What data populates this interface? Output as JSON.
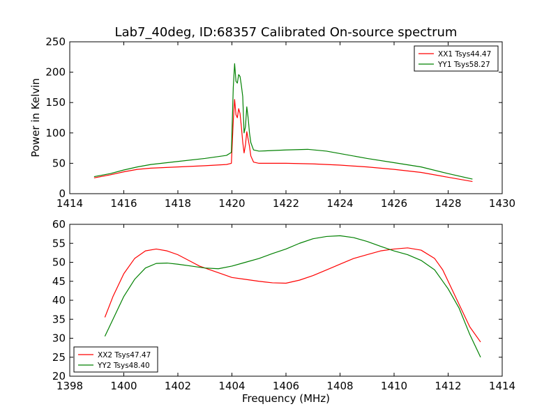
{
  "figure": {
    "title": "Lab7_40deg, ID:68357 Calibrated On-source spectrum",
    "xlabel": "Frequency (MHz)"
  },
  "colors": {
    "xx": "#ff0000",
    "yy": "#008000",
    "axis": "#000000",
    "background": "#ffffff"
  },
  "chart_data": [
    {
      "type": "line",
      "ylabel": "Power in Kelvin",
      "xlim": [
        1414,
        1430
      ],
      "ylim": [
        0,
        250
      ],
      "xticks": [
        1414,
        1416,
        1418,
        1420,
        1422,
        1424,
        1426,
        1428,
        1430
      ],
      "yticks": [
        0,
        50,
        100,
        150,
        200,
        250
      ],
      "legend_position": "top-right",
      "grid": false,
      "series": [
        {
          "name": "XX1 Tsys44.47",
          "color": "#ff0000",
          "points": [
            [
              1414.9,
              26
            ],
            [
              1415.5,
              31
            ],
            [
              1416,
              36
            ],
            [
              1416.5,
              40
            ],
            [
              1417,
              42
            ],
            [
              1418,
              44
            ],
            [
              1419,
              46
            ],
            [
              1419.8,
              48
            ],
            [
              1419.98,
              50
            ],
            [
              1420.05,
              120
            ],
            [
              1420.1,
              155
            ],
            [
              1420.15,
              130
            ],
            [
              1420.2,
              125
            ],
            [
              1420.25,
              140
            ],
            [
              1420.3,
              132
            ],
            [
              1420.35,
              110
            ],
            [
              1420.4,
              85
            ],
            [
              1420.45,
              67
            ],
            [
              1420.5,
              80
            ],
            [
              1420.55,
              102
            ],
            [
              1420.6,
              90
            ],
            [
              1420.65,
              78
            ],
            [
              1420.7,
              62
            ],
            [
              1420.8,
              52
            ],
            [
              1421,
              50
            ],
            [
              1422,
              50
            ],
            [
              1423,
              49
            ],
            [
              1424,
              47
            ],
            [
              1425,
              44
            ],
            [
              1426,
              40
            ],
            [
              1427,
              35
            ],
            [
              1428,
              27
            ],
            [
              1428.9,
              20
            ]
          ]
        },
        {
          "name": "YY1 Tsys58.27",
          "color": "#008000",
          "points": [
            [
              1414.9,
              28
            ],
            [
              1415.5,
              33
            ],
            [
              1416,
              39
            ],
            [
              1416.5,
              44
            ],
            [
              1417,
              48
            ],
            [
              1418,
              53
            ],
            [
              1419,
              58
            ],
            [
              1419.8,
              63
            ],
            [
              1419.98,
              68
            ],
            [
              1420.05,
              175
            ],
            [
              1420.1,
              214
            ],
            [
              1420.15,
              185
            ],
            [
              1420.2,
              182
            ],
            [
              1420.25,
              196
            ],
            [
              1420.3,
              193
            ],
            [
              1420.35,
              178
            ],
            [
              1420.4,
              160
            ],
            [
              1420.45,
              100
            ],
            [
              1420.5,
              110
            ],
            [
              1420.55,
              143
            ],
            [
              1420.6,
              125
            ],
            [
              1420.65,
              100
            ],
            [
              1420.7,
              84
            ],
            [
              1420.8,
              72
            ],
            [
              1421,
              70
            ],
            [
              1422,
              72
            ],
            [
              1422.8,
              73
            ],
            [
              1423.5,
              70
            ],
            [
              1424,
              66
            ],
            [
              1425,
              58
            ],
            [
              1426,
              51
            ],
            [
              1427,
              44
            ],
            [
              1428,
              33
            ],
            [
              1428.9,
              24
            ]
          ]
        }
      ]
    },
    {
      "type": "line",
      "ylabel": "",
      "xlim": [
        1398,
        1414
      ],
      "ylim": [
        20,
        60
      ],
      "xticks": [
        1398,
        1400,
        1402,
        1404,
        1406,
        1408,
        1410,
        1412,
        1414
      ],
      "yticks": [
        20,
        25,
        30,
        35,
        40,
        45,
        50,
        55,
        60
      ],
      "legend_position": "bottom-left",
      "grid": false,
      "series": [
        {
          "name": "XX2 Tsys47.47",
          "color": "#ff0000",
          "points": [
            [
              1399.3,
              35.5
            ],
            [
              1399.6,
              41
            ],
            [
              1400,
              47
            ],
            [
              1400.4,
              51
            ],
            [
              1400.8,
              53
            ],
            [
              1401.2,
              53.5
            ],
            [
              1401.6,
              53
            ],
            [
              1402,
              52
            ],
            [
              1402.4,
              50.5
            ],
            [
              1402.8,
              49
            ],
            [
              1403.2,
              48
            ],
            [
              1403.6,
              47
            ],
            [
              1404,
              46
            ],
            [
              1404.5,
              45.5
            ],
            [
              1405,
              45
            ],
            [
              1405.5,
              44.6
            ],
            [
              1406,
              44.5
            ],
            [
              1406.5,
              45.3
            ],
            [
              1407,
              46.5
            ],
            [
              1407.5,
              48
            ],
            [
              1408,
              49.5
            ],
            [
              1408.5,
              51
            ],
            [
              1409,
              52
            ],
            [
              1409.5,
              53
            ],
            [
              1410,
              53.5
            ],
            [
              1410.5,
              53.8
            ],
            [
              1411,
              53.2
            ],
            [
              1411.5,
              51
            ],
            [
              1411.8,
              48
            ],
            [
              1412,
              45
            ],
            [
              1412.4,
              39
            ],
            [
              1412.8,
              33
            ],
            [
              1413.2,
              29
            ]
          ]
        },
        {
          "name": "YY2 Tsys48.40",
          "color": "#008000",
          "points": [
            [
              1399.3,
              30.5
            ],
            [
              1399.6,
              35
            ],
            [
              1400,
              41
            ],
            [
              1400.4,
              45.5
            ],
            [
              1400.8,
              48.5
            ],
            [
              1401.2,
              49.7
            ],
            [
              1401.6,
              49.8
            ],
            [
              1402,
              49.5
            ],
            [
              1402.5,
              49
            ],
            [
              1403,
              48.5
            ],
            [
              1403.5,
              48.3
            ],
            [
              1404,
              49
            ],
            [
              1404.5,
              50
            ],
            [
              1405,
              51
            ],
            [
              1405.5,
              52.3
            ],
            [
              1406,
              53.5
            ],
            [
              1406.5,
              55
            ],
            [
              1407,
              56.2
            ],
            [
              1407.5,
              56.8
            ],
            [
              1408,
              57
            ],
            [
              1408.5,
              56.5
            ],
            [
              1409,
              55.5
            ],
            [
              1409.5,
              54.2
            ],
            [
              1410,
              53
            ],
            [
              1410.5,
              52
            ],
            [
              1411,
              50.5
            ],
            [
              1411.5,
              48
            ],
            [
              1412,
              43
            ],
            [
              1412.4,
              38
            ],
            [
              1412.8,
              31
            ],
            [
              1413.2,
              25
            ]
          ]
        }
      ]
    }
  ]
}
